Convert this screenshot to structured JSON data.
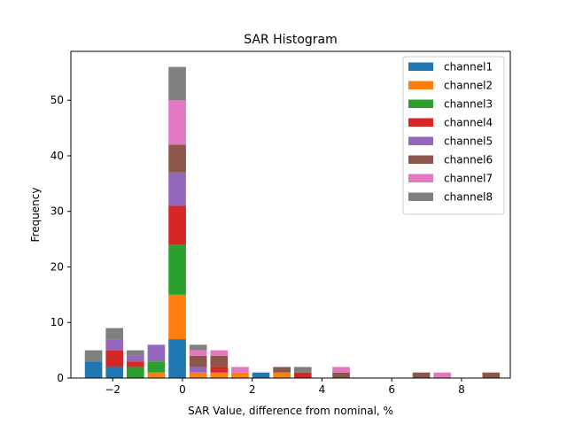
{
  "chart_data": {
    "type": "bar",
    "stacked": true,
    "title": "SAR Histogram",
    "xlabel": "SAR Value, difference from nominal, %",
    "ylabel": "Frequency",
    "xlim": [
      -3.2,
      9.4
    ],
    "ylim": [
      0,
      58.8
    ],
    "xticks": [
      -2,
      0,
      2,
      4,
      6,
      8
    ],
    "xtick_labels": [
      "−2",
      "0",
      "2",
      "4",
      "6",
      "8"
    ],
    "yticks": [
      0,
      10,
      20,
      30,
      40,
      50
    ],
    "ytick_labels": [
      "0",
      "10",
      "20",
      "30",
      "40",
      "50"
    ],
    "grid": false,
    "legend_position": "top-right",
    "bin_width": 0.5,
    "bin_centers": [
      -2.55,
      -1.95,
      -1.35,
      -0.75,
      -0.15,
      0.45,
      1.05,
      1.65,
      2.25,
      2.85,
      3.45,
      4.55,
      6.85,
      7.45,
      8.85
    ],
    "series": [
      {
        "name": "channel1",
        "color": "#1f77b4",
        "values": [
          3,
          2,
          0,
          0,
          7,
          0,
          0,
          0,
          1,
          0,
          0,
          0,
          0,
          0,
          0
        ]
      },
      {
        "name": "channel2",
        "color": "#ff7f0e",
        "values": [
          0,
          0,
          0,
          1,
          8,
          1,
          1,
          1,
          0,
          1,
          0,
          0,
          0,
          0,
          0
        ]
      },
      {
        "name": "channel3",
        "color": "#2ca02c",
        "values": [
          0,
          0,
          2,
          2,
          9,
          0,
          0,
          0,
          0,
          0,
          0,
          0,
          0,
          0,
          0
        ]
      },
      {
        "name": "channel4",
        "color": "#d62728",
        "values": [
          0,
          3,
          1,
          0,
          7,
          0,
          1,
          0,
          0,
          0,
          1,
          0,
          0,
          0,
          0
        ]
      },
      {
        "name": "channel5",
        "color": "#9467bd",
        "values": [
          0,
          2,
          1,
          3,
          6,
          1,
          0,
          0,
          0,
          0,
          0,
          0,
          0,
          0,
          0
        ]
      },
      {
        "name": "channel6",
        "color": "#8c564b",
        "values": [
          0,
          0,
          0,
          0,
          5,
          2,
          2,
          0,
          0,
          1,
          0,
          1,
          1,
          0,
          1
        ]
      },
      {
        "name": "channel7",
        "color": "#e377c2",
        "values": [
          0,
          0,
          0,
          0,
          8,
          1,
          1,
          1,
          0,
          0,
          0,
          1,
          0,
          1,
          0
        ]
      },
      {
        "name": "channel8",
        "color": "#7f7f7f",
        "values": [
          2,
          2,
          1,
          0,
          6,
          1,
          0,
          0,
          0,
          0,
          1,
          0,
          0,
          0,
          0
        ]
      }
    ]
  }
}
